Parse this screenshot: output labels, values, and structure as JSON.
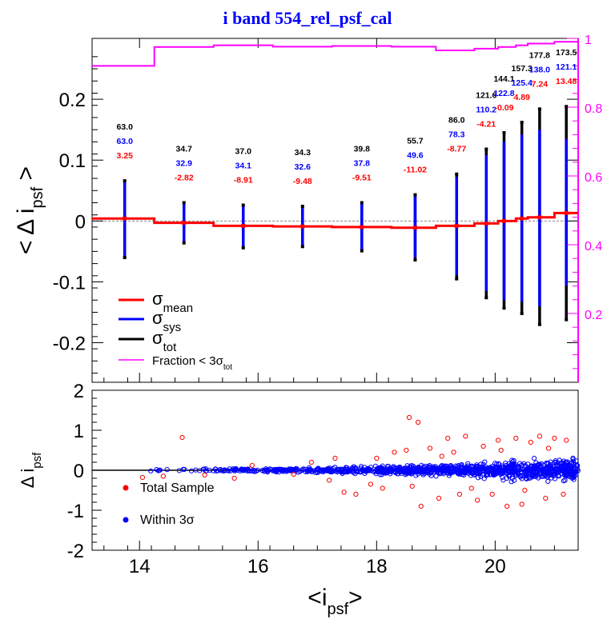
{
  "chart_data": {
    "title": "i band 554_rel_psf_cal",
    "top_panel": {
      "type": "line",
      "ylabel": {
        "main": "< Δ i",
        "sub": "psf",
        "close": " >"
      },
      "xlim": [
        13.2,
        21.4
      ],
      "ylim": [
        -0.265,
        0.3
      ],
      "yticks": [
        -0.2,
        -0.1,
        0,
        0.1,
        0.2
      ],
      "ytick_labels": [
        "-0.2",
        "-0.1",
        "0",
        "0.1",
        "0.2"
      ],
      "right_axis": {
        "ylim": [
          0.0,
          1.0
        ],
        "ticks": [
          0.2,
          0.4,
          0.6,
          0.8,
          1.0
        ],
        "tick_labels": [
          "0.2",
          "0.4",
          "0.6",
          "0.8",
          "1"
        ],
        "color": "#ff00ff"
      },
      "bins": [
        {
          "x": 13.75,
          "lo": 13.2,
          "hi": 14.25,
          "mean": 0.004,
          "sys_lo": -0.06,
          "sys_hi": 0.066,
          "tot_lo": -0.06,
          "tot_hi": 0.066,
          "frac": 0.92,
          "n_tot": "63.0",
          "n_sys": "63.0",
          "n_mean": "3.25"
        },
        {
          "x": 14.75,
          "lo": 14.25,
          "hi": 15.25,
          "mean": -0.003,
          "sys_lo": -0.036,
          "sys_hi": 0.03,
          "tot_lo": -0.036,
          "tot_hi": 0.03,
          "frac": 0.975,
          "n_tot": "34.7",
          "n_sys": "32.9",
          "n_mean": "-2.82"
        },
        {
          "x": 15.75,
          "lo": 15.25,
          "hi": 16.25,
          "mean": -0.008,
          "sys_lo": -0.044,
          "sys_hi": 0.026,
          "tot_lo": -0.044,
          "tot_hi": 0.026,
          "frac": 0.98,
          "n_tot": "37.0",
          "n_sys": "34.1",
          "n_mean": "-8.91"
        },
        {
          "x": 16.75,
          "lo": 16.25,
          "hi": 17.25,
          "mean": -0.009,
          "sys_lo": -0.042,
          "sys_hi": 0.024,
          "tot_lo": -0.042,
          "tot_hi": 0.024,
          "frac": 0.976,
          "n_tot": "34.3",
          "n_sys": "32.6",
          "n_mean": "-9.48"
        },
        {
          "x": 17.75,
          "lo": 17.25,
          "hi": 18.25,
          "mean": -0.01,
          "sys_lo": -0.049,
          "sys_hi": 0.03,
          "tot_lo": -0.049,
          "tot_hi": 0.03,
          "frac": 0.978,
          "n_tot": "39.8",
          "n_sys": "37.8",
          "n_mean": "-9.51"
        },
        {
          "x": 18.65,
          "lo": 18.25,
          "hi": 19.0,
          "mean": -0.011,
          "sys_lo": -0.06,
          "sys_hi": 0.04,
          "tot_lo": -0.064,
          "tot_hi": 0.043,
          "frac": 0.976,
          "n_tot": "55.7",
          "n_sys": "49.6",
          "n_mean": "-11.02"
        },
        {
          "x": 19.35,
          "lo": 19.0,
          "hi": 19.65,
          "mean": -0.008,
          "sys_lo": -0.089,
          "sys_hi": 0.072,
          "tot_lo": -0.095,
          "tot_hi": 0.077,
          "frac": 0.965,
          "n_tot": "86.0",
          "n_sys": "78.3",
          "n_mean": "-8.77"
        },
        {
          "x": 19.85,
          "lo": 19.65,
          "hi": 20.05,
          "mean": -0.004,
          "sys_lo": -0.115,
          "sys_hi": 0.108,
          "tot_lo": -0.126,
          "tot_hi": 0.118,
          "frac": 0.97,
          "n_tot": "121.6",
          "n_sys": "110.2",
          "n_mean": "-4.21"
        },
        {
          "x": 20.15,
          "lo": 20.05,
          "hi": 20.35,
          "mean": 0.0,
          "sys_lo": -0.13,
          "sys_hi": 0.13,
          "tot_lo": -0.143,
          "tot_hi": 0.145,
          "frac": 0.975,
          "n_tot": "144.1",
          "n_sys": "122.8",
          "n_mean": "-0.09"
        },
        {
          "x": 20.45,
          "lo": 20.35,
          "hi": 20.55,
          "mean": 0.004,
          "sys_lo": -0.133,
          "sys_hi": 0.142,
          "tot_lo": -0.152,
          "tot_hi": 0.162,
          "frac": 0.98,
          "n_tot": "157.3",
          "n_sys": "125.4",
          "n_mean": "4.89"
        },
        {
          "x": 20.75,
          "lo": 20.55,
          "hi": 21.0,
          "mean": 0.006,
          "sys_lo": -0.14,
          "sys_hi": 0.15,
          "tot_lo": -0.17,
          "tot_hi": 0.184,
          "frac": 0.985,
          "n_tot": "177.8",
          "n_sys": "138.0",
          "n_mean": "7.24"
        },
        {
          "x": 21.2,
          "lo": 21.0,
          "hi": 21.4,
          "mean": 0.013,
          "sys_lo": -0.106,
          "sys_hi": 0.135,
          "tot_lo": -0.162,
          "tot_hi": 0.188,
          "frac": 0.99,
          "n_tot": "173.5",
          "n_sys": "121.1",
          "n_mean": "13.48"
        }
      ],
      "legend": [
        {
          "label": "σ",
          "sub": "mean",
          "color": "#ff0000"
        },
        {
          "label": "σ",
          "sub": "sys",
          "color": "#0000ff"
        },
        {
          "label": "σ",
          "sub": "tot",
          "color": "#000000"
        },
        {
          "label": "Fraction < 3σ",
          "sub": "tot",
          "color": "#ff00ff"
        }
      ],
      "colors": {
        "mean": "#ff0000",
        "sys": "#0000ff",
        "tot": "#000000",
        "frac": "#ff00ff"
      }
    },
    "bottom_panel": {
      "type": "scatter",
      "ylabel": {
        "main": "Δ i",
        "sub": "psf"
      },
      "xlabel": {
        "main": "<i",
        "sub": "psf",
        "close": ">"
      },
      "xlim": [
        13.2,
        21.4
      ],
      "ylim": [
        -2,
        2
      ],
      "xticks": [
        14,
        16,
        18,
        20
      ],
      "xtick_labels": [
        "14",
        "16",
        "18",
        "20"
      ],
      "yticks": [
        -2,
        -1,
        0,
        1,
        2
      ],
      "ytick_labels": [
        "-2",
        "-1",
        "0",
        "1",
        "2"
      ],
      "legend": [
        {
          "label": "Total Sample",
          "color": "#ff0000"
        },
        {
          "label": "Within 3σ",
          "color": "#0000ff"
        }
      ],
      "red_outliers": [
        [
          14.72,
          0.82
        ],
        [
          14.05,
          -0.18
        ],
        [
          14.4,
          -0.15
        ],
        [
          15.1,
          -0.12
        ],
        [
          15.9,
          0.12
        ],
        [
          16.6,
          -0.1
        ],
        [
          17.2,
          -0.25
        ],
        [
          17.45,
          -0.55
        ],
        [
          17.65,
          -0.6
        ],
        [
          18.0,
          0.3
        ],
        [
          18.3,
          0.45
        ],
        [
          18.5,
          0.5
        ],
        [
          18.55,
          1.32
        ],
        [
          18.7,
          1.2
        ],
        [
          18.75,
          -0.9
        ],
        [
          18.9,
          0.55
        ],
        [
          19.05,
          -0.7
        ],
        [
          19.2,
          0.8
        ],
        [
          19.4,
          -0.6
        ],
        [
          19.5,
          0.85
        ],
        [
          19.7,
          -0.75
        ],
        [
          19.8,
          0.6
        ],
        [
          19.95,
          -0.6
        ],
        [
          20.05,
          0.75
        ],
        [
          20.2,
          -0.9
        ],
        [
          20.35,
          0.8
        ],
        [
          20.45,
          -0.85
        ],
        [
          20.6,
          0.7
        ],
        [
          20.75,
          0.85
        ],
        [
          20.85,
          -0.7
        ],
        [
          21.0,
          0.8
        ],
        [
          21.15,
          -0.6
        ],
        [
          21.2,
          0.75
        ],
        [
          18.6,
          -0.4
        ],
        [
          17.9,
          -0.35
        ],
        [
          16.9,
          0.2
        ],
        [
          19.3,
          0.45
        ],
        [
          19.6,
          -0.45
        ],
        [
          20.1,
          0.5
        ],
        [
          20.5,
          -0.5
        ],
        [
          20.9,
          0.55
        ],
        [
          18.1,
          -0.45
        ],
        [
          17.3,
          0.3
        ],
        [
          15.6,
          -0.2
        ],
        [
          19.1,
          0.35
        ]
      ],
      "colors": {
        "total": "#ff0000",
        "within": "#0000ff"
      }
    }
  }
}
